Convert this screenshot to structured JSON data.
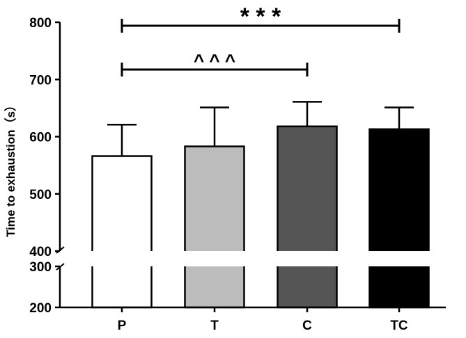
{
  "chart_data": {
    "type": "bar",
    "title": "",
    "xlabel": "",
    "ylabel": "Time to exhaustion（s）",
    "categories": [
      "P",
      "T",
      "C",
      "TC"
    ],
    "values": [
      566,
      583,
      618,
      613
    ],
    "error_plus": [
      55,
      68,
      43,
      38
    ],
    "colors": [
      "#ffffff",
      "#bcbcbc",
      "#555555",
      "#000000"
    ],
    "ylim": [
      200,
      800
    ],
    "axis_break": [
      300,
      400
    ],
    "yticks": [
      "200",
      "300",
      "400",
      "500",
      "600",
      "700",
      "800"
    ],
    "grid": false,
    "significance": [
      {
        "from": "P",
        "to": "C",
        "label": "^ ^ ^"
      },
      {
        "from": "P",
        "to": "TC",
        "label": "* * *"
      }
    ]
  }
}
